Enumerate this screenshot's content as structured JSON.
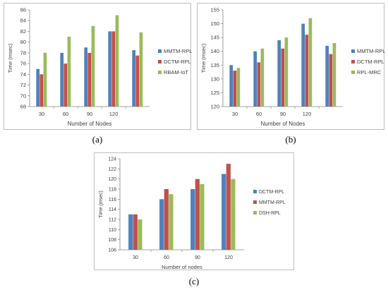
{
  "colors": {
    "blue": "#4f81bd",
    "red": "#c0504d",
    "green": "#9bbb59"
  },
  "captions": [
    "(a)",
    "(b)",
    "(c)"
  ],
  "chart_data": [
    {
      "type": "bar",
      "categories": [
        "30",
        "60",
        "90",
        "120",
        ""
      ],
      "series": [
        {
          "name": "MMTM-RPL",
          "color": "#4f81bd",
          "values": [
            75,
            78,
            79,
            82,
            78.5
          ]
        },
        {
          "name": "DCTM-RPL",
          "color": "#c0504d",
          "values": [
            74,
            76,
            78,
            82,
            77.5
          ]
        },
        {
          "name": "RBAM-IoT",
          "color": "#9bbb59",
          "values": [
            78,
            81,
            83,
            85,
            81.8
          ]
        }
      ],
      "xlabel": "Number of Nodes",
      "ylabel": "Time (msec)",
      "ylim": [
        68,
        86
      ],
      "yticks": [
        68,
        70,
        72,
        74,
        76,
        78,
        80,
        82,
        84,
        86
      ],
      "legend": "right",
      "grid": false
    },
    {
      "type": "bar",
      "categories": [
        "30",
        "60",
        "90",
        "120",
        ""
      ],
      "series": [
        {
          "name": "MMTM-RPL",
          "color": "#4f81bd",
          "values": [
            135,
            140,
            144,
            150,
            142
          ]
        },
        {
          "name": "DCTM-RPL",
          "color": "#c0504d",
          "values": [
            133,
            136,
            141,
            146,
            139
          ]
        },
        {
          "name": "RPL-MRC",
          "color": "#9bbb59",
          "values": [
            134,
            141,
            145,
            152,
            143
          ]
        }
      ],
      "xlabel": "Number of Nodes",
      "ylabel": "Time (msec)",
      "ylim": [
        120,
        155
      ],
      "yticks": [
        120,
        125,
        130,
        135,
        140,
        145,
        150,
        155
      ],
      "legend": "right",
      "grid": false
    },
    {
      "type": "bar",
      "categories": [
        "30",
        "60",
        "90",
        "120"
      ],
      "series": [
        {
          "name": "DCTM-RPL",
          "color": "#4f81bd",
          "values": [
            113,
            116,
            118,
            121
          ]
        },
        {
          "name": "MMTM-RPL",
          "color": "#c0504d",
          "values": [
            113,
            118,
            120,
            123
          ]
        },
        {
          "name": "DSH-RPL",
          "color": "#9bbb59",
          "values": [
            112,
            117,
            119,
            120
          ]
        }
      ],
      "xlabel": "Number  of nodes",
      "ylabel": "Time (msec)",
      "ylim": [
        106,
        124
      ],
      "yticks": [
        106,
        108,
        110,
        112,
        114,
        116,
        118,
        120,
        122,
        124
      ],
      "legend": "right",
      "grid": false
    }
  ]
}
